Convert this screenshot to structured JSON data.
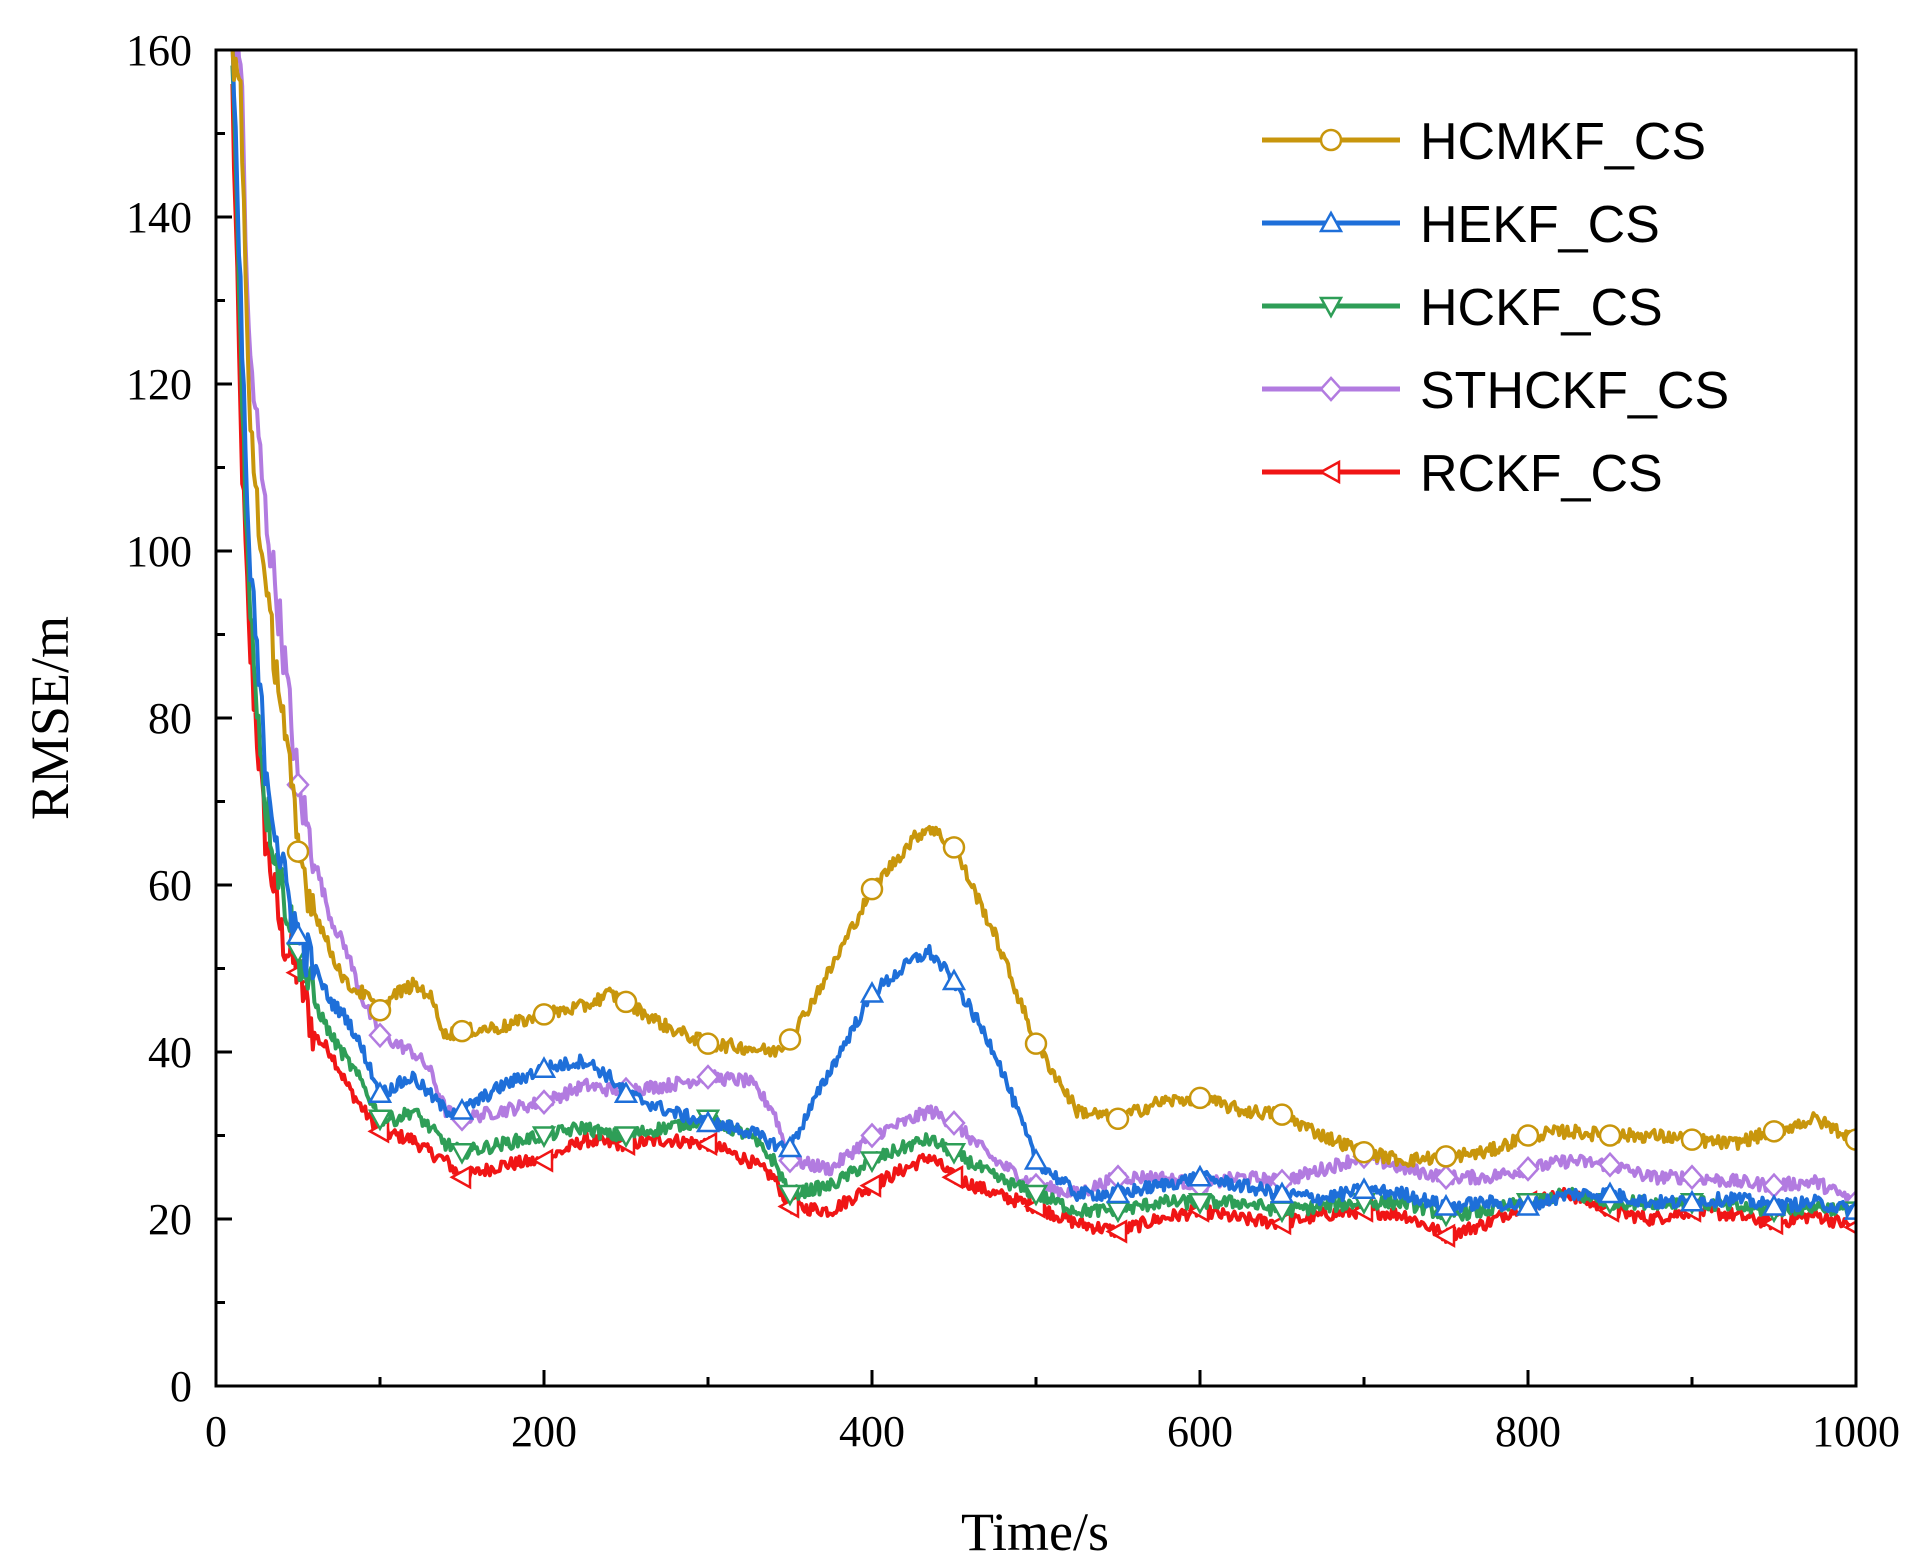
{
  "chart_data": {
    "type": "line",
    "title": "",
    "xlabel": "Time/s",
    "ylabel": "RMSE/m",
    "xlim": [
      0,
      1000
    ],
    "ylim": [
      0,
      160
    ],
    "x_ticks": [
      0,
      200,
      400,
      600,
      800,
      1000
    ],
    "y_ticks": [
      0,
      20,
      40,
      60,
      80,
      100,
      120,
      140,
      160
    ],
    "x_tick_labels": [
      "0",
      "200",
      "400",
      "600",
      "800",
      "1000"
    ],
    "y_tick_labels": [
      "0",
      "20",
      "40",
      "60",
      "80",
      "100",
      "120",
      "140",
      "160"
    ],
    "grid": false,
    "legend_position": "top-right",
    "series": [
      {
        "name": "HCMKF_CS",
        "color": "#C8960C",
        "marker": "circle",
        "x": [
          10,
          15,
          20,
          30,
          40,
          50,
          60,
          70,
          80,
          90,
          100,
          110,
          120,
          130,
          140,
          150,
          175,
          200,
          225,
          240,
          250,
          275,
          300,
          325,
          340,
          350,
          375,
          400,
          425,
          435,
          450,
          475,
          500,
          525,
          550,
          575,
          600,
          625,
          650,
          675,
          700,
          725,
          750,
          775,
          800,
          825,
          850,
          875,
          900,
          925,
          950,
          975,
          1000
        ],
        "y": [
          160,
          155,
          118,
          95,
          82,
          64,
          57,
          52,
          48,
          47,
          45,
          47,
          48,
          47,
          42,
          42.5,
          43,
          44.5,
          45.5,
          47,
          46,
          43,
          41,
          40.5,
          40,
          41.5,
          50,
          59.5,
          65.5,
          67,
          64.5,
          54,
          41,
          33,
          32,
          34,
          34.5,
          33,
          32.5,
          30,
          28,
          27,
          27.5,
          28,
          30,
          30.5,
          30,
          30,
          29.5,
          29,
          30.5,
          32,
          29.5
        ]
      },
      {
        "name": "HEKF_CS",
        "color": "#1E6FD9",
        "marker": "triangle-up",
        "x": [
          10,
          15,
          20,
          30,
          40,
          50,
          60,
          70,
          80,
          90,
          100,
          110,
          120,
          130,
          140,
          150,
          175,
          200,
          225,
          240,
          250,
          275,
          300,
          325,
          340,
          350,
          375,
          400,
          425,
          435,
          450,
          475,
          500,
          525,
          550,
          575,
          600,
          625,
          650,
          675,
          700,
          725,
          750,
          775,
          800,
          825,
          850,
          875,
          900,
          925,
          950,
          975,
          1000
        ],
        "y": [
          160,
          130,
          100,
          75,
          62,
          54,
          50,
          46,
          44,
          40,
          35,
          36,
          37,
          35,
          33,
          33,
          36,
          38,
          39,
          37,
          35,
          33,
          31.5,
          30.5,
          29,
          28.5,
          38,
          47,
          51,
          52,
          48.5,
          40,
          27,
          23,
          23,
          24,
          25,
          24,
          23,
          22.5,
          23.5,
          23,
          21.5,
          22,
          21.5,
          23,
          23,
          22,
          22,
          22.5,
          21.5,
          22,
          21
        ]
      },
      {
        "name": "HCKF_CS",
        "color": "#2E9E57",
        "marker": "triangle-down",
        "x": [
          10,
          15,
          20,
          30,
          40,
          50,
          60,
          70,
          80,
          90,
          100,
          110,
          120,
          130,
          140,
          150,
          175,
          200,
          225,
          240,
          250,
          275,
          300,
          325,
          340,
          350,
          375,
          400,
          425,
          435,
          450,
          475,
          500,
          525,
          550,
          575,
          600,
          625,
          650,
          675,
          700,
          725,
          750,
          775,
          800,
          825,
          850,
          875,
          900,
          925,
          950,
          975,
          1000
        ],
        "y": [
          160,
          125,
          95,
          70,
          60,
          52,
          46,
          42,
          39,
          36,
          32,
          32,
          33,
          31,
          29,
          28,
          29,
          30,
          31,
          30,
          30,
          31,
          32,
          30,
          27,
          23,
          24,
          27,
          29,
          29.5,
          28,
          25,
          23,
          21,
          21,
          22,
          22,
          22,
          21,
          21.5,
          22,
          22,
          20.5,
          21,
          22,
          23,
          22,
          22,
          22,
          21.5,
          21,
          21.5,
          21
        ]
      },
      {
        "name": "STHCKF_CS",
        "color": "#B27BE0",
        "marker": "diamond",
        "x": [
          10,
          15,
          20,
          30,
          40,
          50,
          60,
          70,
          80,
          90,
          100,
          110,
          120,
          130,
          140,
          150,
          175,
          200,
          225,
          240,
          250,
          275,
          300,
          325,
          340,
          350,
          375,
          400,
          425,
          435,
          450,
          475,
          500,
          525,
          550,
          575,
          600,
          625,
          650,
          675,
          700,
          725,
          750,
          775,
          800,
          825,
          850,
          875,
          900,
          925,
          950,
          975,
          1000
        ],
        "y": [
          160,
          160,
          125,
          105,
          90,
          72,
          63,
          56,
          52,
          46,
          42,
          41,
          40,
          38,
          33,
          32,
          33,
          34,
          36,
          35.5,
          35.5,
          36,
          37,
          36.5,
          33,
          27,
          26,
          30,
          32,
          33,
          31.5,
          27,
          24,
          23,
          25,
          25,
          24,
          25,
          24.5,
          26,
          27.5,
          26,
          25,
          25,
          26,
          27,
          26.5,
          25,
          25,
          24.5,
          24,
          24.5,
          22
        ]
      },
      {
        "name": "RCKF_CS",
        "color": "#F01515",
        "marker": "triangle-left",
        "x": [
          10,
          15,
          20,
          30,
          40,
          50,
          60,
          70,
          80,
          90,
          100,
          110,
          120,
          130,
          140,
          150,
          175,
          200,
          225,
          240,
          250,
          275,
          300,
          325,
          340,
          350,
          375,
          400,
          425,
          435,
          450,
          475,
          500,
          525,
          550,
          575,
          600,
          625,
          650,
          675,
          700,
          725,
          750,
          775,
          800,
          825,
          850,
          875,
          900,
          925,
          950,
          975,
          1000
        ],
        "y": [
          155,
          115,
          90,
          66,
          54,
          49.5,
          42,
          40,
          36,
          33,
          30.5,
          30,
          29.5,
          28,
          27,
          25,
          26.5,
          27,
          29.5,
          29,
          29,
          29.5,
          29,
          27,
          25,
          21.5,
          21,
          24,
          26.5,
          27.5,
          25,
          23,
          21.5,
          19.5,
          18.5,
          20,
          21,
          20,
          19.5,
          20.5,
          21,
          20.5,
          18,
          19.5,
          22,
          23,
          21,
          20,
          21,
          20.5,
          19.5,
          20.5,
          19
        ]
      }
    ]
  }
}
